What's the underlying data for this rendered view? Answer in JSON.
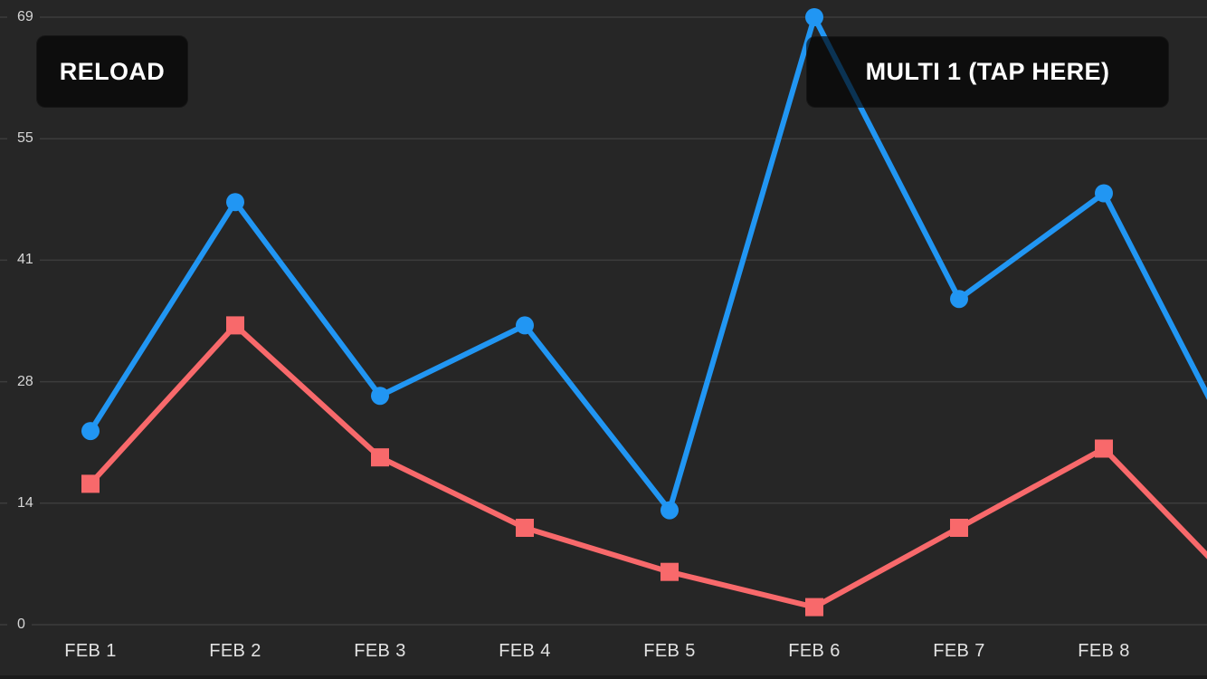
{
  "buttons": {
    "reload": "RELOAD",
    "multi1": "MULTI 1 (TAP HERE)"
  },
  "chart_data": {
    "type": "line",
    "title": "",
    "xlabel": "",
    "ylabel": "",
    "categories": [
      "FEB 1",
      "FEB 2",
      "FEB 3",
      "FEB 4",
      "FEB 5",
      "FEB 6",
      "FEB 7",
      "FEB 8"
    ],
    "series": [
      {
        "name": "blue-circle-series",
        "color": "#2196F3",
        "marker": "circle",
        "values": [
          22,
          48,
          26,
          34,
          13,
          69,
          37,
          49
        ],
        "next_value_offscreen": 17
      },
      {
        "name": "red-square-series",
        "color": "#F8696B",
        "marker": "square",
        "values": [
          16,
          34,
          19,
          11,
          6,
          2,
          11,
          20
        ],
        "next_value_offscreen": 3
      }
    ],
    "ylim": [
      0,
      69
    ],
    "ytick_labels": [
      "0",
      "14",
      "28",
      "41",
      "55",
      "69"
    ],
    "grid": true,
    "legend": "none"
  },
  "colors": {
    "background": "#262626",
    "grid_line": "#3c3c3c",
    "y_label_text": "#d6d6d6",
    "x_label_text": "#e2e2e2",
    "button_bg": "rgba(0,0,0,0.66)",
    "button_text": "#ffffff",
    "series_blue": "#2196F3",
    "series_red": "#F8696B"
  }
}
